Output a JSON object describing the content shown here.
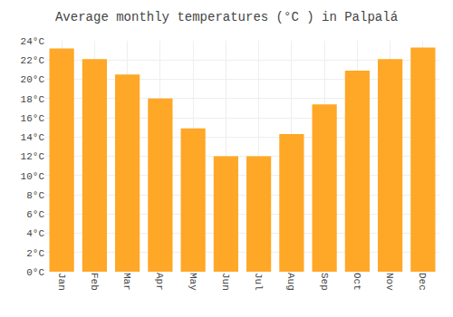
{
  "chart_data": {
    "type": "bar",
    "title": "Average monthly temperatures (°C ) in Palpalá",
    "categories": [
      "Jan",
      "Feb",
      "Mar",
      "Apr",
      "May",
      "Jun",
      "Jul",
      "Aug",
      "Sep",
      "Oct",
      "Nov",
      "Dec"
    ],
    "values": [
      23.2,
      22.1,
      20.5,
      18.0,
      14.9,
      12.0,
      12.0,
      14.3,
      17.4,
      20.9,
      22.1,
      23.3
    ],
    "color": "#FFA726",
    "ylim": [
      0,
      24
    ],
    "yticks": [
      {
        "value": 0,
        "label": "0°C"
      },
      {
        "value": 2,
        "label": "2°C"
      },
      {
        "value": 4,
        "label": "4°C"
      },
      {
        "value": 6,
        "label": "6°C"
      },
      {
        "value": 8,
        "label": "8°C"
      },
      {
        "value": 10,
        "label": "10°C"
      },
      {
        "value": 12,
        "label": "12°C"
      },
      {
        "value": 14,
        "label": "14°C"
      },
      {
        "value": 16,
        "label": "16°C"
      },
      {
        "value": 18,
        "label": "18°C"
      },
      {
        "value": 20,
        "label": "20°C"
      },
      {
        "value": 22,
        "label": "22°C"
      },
      {
        "value": 24,
        "label": "24°C"
      }
    ],
    "grid": true
  }
}
